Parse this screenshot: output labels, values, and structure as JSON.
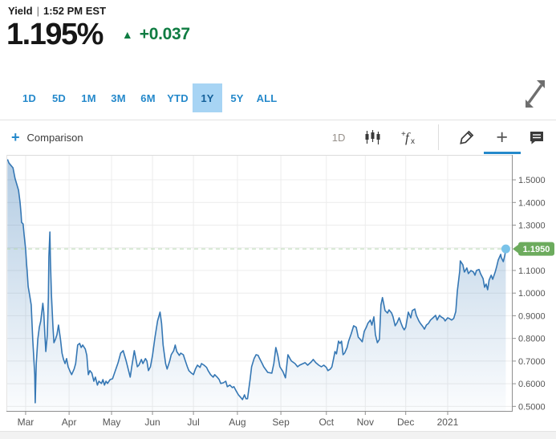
{
  "header": {
    "label": "Yield",
    "separator": "|",
    "timestamp": "1:52 PM EST",
    "price": "1.195%",
    "up_arrow": "▲",
    "change": "+0.037"
  },
  "range_tabs": {
    "items": [
      "1D",
      "5D",
      "1M",
      "3M",
      "6M",
      "YTD",
      "1Y",
      "5Y",
      "ALL"
    ],
    "selected": "1Y"
  },
  "toolbar": {
    "comparison_plus": "+",
    "comparison_label": "Comparison",
    "frequency_label": "1D",
    "fx_plus": "+",
    "fx_f": "f",
    "fx_x": "x",
    "add_tool_plus": "+"
  },
  "colors": {
    "accent_blue": "#2589cb",
    "selected_tab_bg": "#a7d4f4",
    "green_text": "#0f7c42",
    "line": "#3577b4",
    "dashed": "#b7d8b0",
    "dot": "#7ac3e9",
    "badge_bg": "#6cab5d",
    "badge_text": "#ffffff",
    "grid": "#ececec",
    "border_top": "#dcdcdc",
    "border_left": "#e3e3e3",
    "axis_strong": "#8f8f8f",
    "label": "#555555"
  },
  "chart_data": {
    "type": "area",
    "series_name": "Yield",
    "current_value": 1.195,
    "current_value_badge": "1.1950",
    "ylim": [
      0.48,
      1.61
    ],
    "y_ticks": [
      {
        "value": 1.5,
        "label": "1.5000"
      },
      {
        "value": 1.4,
        "label": "1.4000"
      },
      {
        "value": 1.3,
        "label": "1.3000"
      },
      {
        "value": 1.2,
        "label": ""
      },
      {
        "value": 1.1,
        "label": "1.1000"
      },
      {
        "value": 1.0,
        "label": "1.0000"
      },
      {
        "value": 0.9,
        "label": "0.9000"
      },
      {
        "value": 0.8,
        "label": "0.8000"
      },
      {
        "value": 0.7,
        "label": "0.7000"
      },
      {
        "value": 0.6,
        "label": "0.6000"
      },
      {
        "value": 0.5,
        "label": "0.5000"
      }
    ],
    "x_ticks": [
      {
        "label": "Mar",
        "f": 0.038
      },
      {
        "label": "Apr",
        "f": 0.124
      },
      {
        "label": "May",
        "f": 0.208
      },
      {
        "label": "Jun",
        "f": 0.289
      },
      {
        "label": "Jul",
        "f": 0.37
      },
      {
        "label": "Aug",
        "f": 0.457
      },
      {
        "label": "Sep",
        "f": 0.543
      },
      {
        "label": "Oct",
        "f": 0.633
      },
      {
        "label": "Nov",
        "f": 0.71
      },
      {
        "label": "Dec",
        "f": 0.79
      },
      {
        "label": "2021",
        "f": 0.873
      }
    ],
    "points": [
      [
        0.002,
        1.59
      ],
      [
        0.005,
        1.574
      ],
      [
        0.013,
        1.553
      ],
      [
        0.017,
        1.507
      ],
      [
        0.024,
        1.454
      ],
      [
        0.027,
        1.401
      ],
      [
        0.029,
        1.348
      ],
      [
        0.03,
        1.312
      ],
      [
        0.033,
        1.305
      ],
      [
        0.035,
        1.256
      ],
      [
        0.038,
        1.196
      ],
      [
        0.04,
        1.125
      ],
      [
        0.041,
        1.1
      ],
      [
        0.043,
        1.029
      ],
      [
        0.046,
        0.99
      ],
      [
        0.049,
        0.948
      ],
      [
        0.052,
        0.796
      ],
      [
        0.056,
        0.64
      ],
      [
        0.057,
        0.516
      ],
      [
        0.059,
        0.689
      ],
      [
        0.062,
        0.796
      ],
      [
        0.065,
        0.849
      ],
      [
        0.068,
        0.877
      ],
      [
        0.072,
        0.955
      ],
      [
        0.074,
        0.912
      ],
      [
        0.076,
        0.817
      ],
      [
        0.078,
        0.742
      ],
      [
        0.081,
        0.817
      ],
      [
        0.083,
        0.983
      ],
      [
        0.084,
        1.16
      ],
      [
        0.086,
        1.27
      ],
      [
        0.087,
        1.15
      ],
      [
        0.089,
        0.994
      ],
      [
        0.092,
        0.852
      ],
      [
        0.094,
        0.781
      ],
      [
        0.097,
        0.796
      ],
      [
        0.1,
        0.817
      ],
      [
        0.103,
        0.859
      ],
      [
        0.107,
        0.796
      ],
      [
        0.11,
        0.735
      ],
      [
        0.113,
        0.707
      ],
      [
        0.116,
        0.689
      ],
      [
        0.119,
        0.711
      ],
      [
        0.122,
        0.675
      ],
      [
        0.126,
        0.654
      ],
      [
        0.129,
        0.64
      ],
      [
        0.134,
        0.665
      ],
      [
        0.137,
        0.689
      ],
      [
        0.141,
        0.771
      ],
      [
        0.145,
        0.778
      ],
      [
        0.148,
        0.76
      ],
      [
        0.151,
        0.771
      ],
      [
        0.156,
        0.753
      ],
      [
        0.159,
        0.725
      ],
      [
        0.162,
        0.64
      ],
      [
        0.165,
        0.658
      ],
      [
        0.169,
        0.647
      ],
      [
        0.173,
        0.611
      ],
      [
        0.176,
        0.629
      ],
      [
        0.18,
        0.594
      ],
      [
        0.183,
        0.611
      ],
      [
        0.188,
        0.601
      ],
      [
        0.191,
        0.618
      ],
      [
        0.194,
        0.594
      ],
      [
        0.197,
        0.611
      ],
      [
        0.2,
        0.601
      ],
      [
        0.205,
        0.618
      ],
      [
        0.21,
        0.622
      ],
      [
        0.215,
        0.654
      ],
      [
        0.221,
        0.693
      ],
      [
        0.226,
        0.735
      ],
      [
        0.231,
        0.746
      ],
      [
        0.237,
        0.7
      ],
      [
        0.245,
        0.629
      ],
      [
        0.248,
        0.675
      ],
      [
        0.253,
        0.746
      ],
      [
        0.256,
        0.711
      ],
      [
        0.259,
        0.675
      ],
      [
        0.262,
        0.682
      ],
      [
        0.267,
        0.707
      ],
      [
        0.27,
        0.689
      ],
      [
        0.275,
        0.711
      ],
      [
        0.278,
        0.7
      ],
      [
        0.281,
        0.658
      ],
      [
        0.285,
        0.675
      ],
      [
        0.289,
        0.725
      ],
      [
        0.294,
        0.806
      ],
      [
        0.299,
        0.877
      ],
      [
        0.304,
        0.916
      ],
      [
        0.307,
        0.866
      ],
      [
        0.31,
        0.771
      ],
      [
        0.315,
        0.689
      ],
      [
        0.318,
        0.665
      ],
      [
        0.323,
        0.7
      ],
      [
        0.326,
        0.728
      ],
      [
        0.331,
        0.746
      ],
      [
        0.334,
        0.771
      ],
      [
        0.337,
        0.742
      ],
      [
        0.342,
        0.725
      ],
      [
        0.345,
        0.735
      ],
      [
        0.35,
        0.728
      ],
      [
        0.353,
        0.707
      ],
      [
        0.358,
        0.675
      ],
      [
        0.361,
        0.658
      ],
      [
        0.366,
        0.647
      ],
      [
        0.37,
        0.64
      ],
      [
        0.374,
        0.665
      ],
      [
        0.378,
        0.682
      ],
      [
        0.383,
        0.672
      ],
      [
        0.386,
        0.689
      ],
      [
        0.391,
        0.682
      ],
      [
        0.396,
        0.672
      ],
      [
        0.399,
        0.658
      ],
      [
        0.404,
        0.64
      ],
      [
        0.409,
        0.629
      ],
      [
        0.412,
        0.64
      ],
      [
        0.417,
        0.629
      ],
      [
        0.421,
        0.618
      ],
      [
        0.424,
        0.601
      ],
      [
        0.429,
        0.604
      ],
      [
        0.434,
        0.611
      ],
      [
        0.437,
        0.587
      ],
      [
        0.442,
        0.594
      ],
      [
        0.447,
        0.583
      ],
      [
        0.45,
        0.587
      ],
      [
        0.455,
        0.566
      ],
      [
        0.459,
        0.551
      ],
      [
        0.463,
        0.541
      ],
      [
        0.467,
        0.53
      ],
      [
        0.471,
        0.551
      ],
      [
        0.474,
        0.534
      ],
      [
        0.477,
        0.534
      ],
      [
        0.482,
        0.618
      ],
      [
        0.485,
        0.675
      ],
      [
        0.49,
        0.711
      ],
      [
        0.494,
        0.728
      ],
      [
        0.498,
        0.725
      ],
      [
        0.501,
        0.711
      ],
      [
        0.506,
        0.689
      ],
      [
        0.509,
        0.675
      ],
      [
        0.517,
        0.65
      ],
      [
        0.525,
        0.647
      ],
      [
        0.529,
        0.689
      ],
      [
        0.533,
        0.76
      ],
      [
        0.537,
        0.725
      ],
      [
        0.541,
        0.675
      ],
      [
        0.547,
        0.654
      ],
      [
        0.552,
        0.626
      ],
      [
        0.555,
        0.689
      ],
      [
        0.557,
        0.728
      ],
      [
        0.561,
        0.711
      ],
      [
        0.564,
        0.7
      ],
      [
        0.571,
        0.689
      ],
      [
        0.576,
        0.675
      ],
      [
        0.58,
        0.682
      ],
      [
        0.587,
        0.689
      ],
      [
        0.591,
        0.693
      ],
      [
        0.596,
        0.682
      ],
      [
        0.603,
        0.696
      ],
      [
        0.607,
        0.707
      ],
      [
        0.612,
        0.693
      ],
      [
        0.618,
        0.682
      ],
      [
        0.623,
        0.675
      ],
      [
        0.628,
        0.682
      ],
      [
        0.633,
        0.672
      ],
      [
        0.636,
        0.658
      ],
      [
        0.641,
        0.665
      ],
      [
        0.644,
        0.675
      ],
      [
        0.648,
        0.718
      ],
      [
        0.65,
        0.742
      ],
      [
        0.653,
        0.732
      ],
      [
        0.657,
        0.788
      ],
      [
        0.66,
        0.778
      ],
      [
        0.663,
        0.788
      ],
      [
        0.666,
        0.728
      ],
      [
        0.669,
        0.735
      ],
      [
        0.674,
        0.76
      ],
      [
        0.677,
        0.788
      ],
      [
        0.682,
        0.82
      ],
      [
        0.687,
        0.856
      ],
      [
        0.692,
        0.849
      ],
      [
        0.696,
        0.806
      ],
      [
        0.7,
        0.796
      ],
      [
        0.704,
        0.785
      ],
      [
        0.708,
        0.831
      ],
      [
        0.712,
        0.849
      ],
      [
        0.715,
        0.866
      ],
      [
        0.72,
        0.881
      ],
      [
        0.723,
        0.859
      ],
      [
        0.727,
        0.895
      ],
      [
        0.73,
        0.817
      ],
      [
        0.734,
        0.781
      ],
      [
        0.738,
        0.796
      ],
      [
        0.741,
        0.948
      ],
      [
        0.744,
        0.98
      ],
      [
        0.746,
        0.958
      ],
      [
        0.749,
        0.923
      ],
      [
        0.754,
        0.912
      ],
      [
        0.757,
        0.926
      ],
      [
        0.762,
        0.912
      ],
      [
        0.765,
        0.895
      ],
      [
        0.769,
        0.856
      ],
      [
        0.773,
        0.87
      ],
      [
        0.777,
        0.891
      ],
      [
        0.781,
        0.866
      ],
      [
        0.784,
        0.849
      ],
      [
        0.787,
        0.838
      ],
      [
        0.79,
        0.849
      ],
      [
        0.793,
        0.888
      ],
      [
        0.795,
        0.916
      ],
      [
        0.8,
        0.891
      ],
      [
        0.803,
        0.923
      ],
      [
        0.808,
        0.93
      ],
      [
        0.811,
        0.902
      ],
      [
        0.816,
        0.877
      ],
      [
        0.819,
        0.866
      ],
      [
        0.824,
        0.852
      ],
      [
        0.827,
        0.841
      ],
      [
        0.831,
        0.859
      ],
      [
        0.835,
        0.866
      ],
      [
        0.839,
        0.881
      ],
      [
        0.844,
        0.891
      ],
      [
        0.849,
        0.902
      ],
      [
        0.852,
        0.881
      ],
      [
        0.857,
        0.902
      ],
      [
        0.86,
        0.895
      ],
      [
        0.865,
        0.888
      ],
      [
        0.868,
        0.877
      ],
      [
        0.873,
        0.891
      ],
      [
        0.876,
        0.888
      ],
      [
        0.881,
        0.881
      ],
      [
        0.885,
        0.888
      ],
      [
        0.889,
        0.919
      ],
      [
        0.892,
        1.008
      ],
      [
        0.897,
        1.1
      ],
      [
        0.898,
        1.142
      ],
      [
        0.903,
        1.125
      ],
      [
        0.906,
        1.093
      ],
      [
        0.911,
        1.111
      ],
      [
        0.914,
        1.086
      ],
      [
        0.919,
        1.1
      ],
      [
        0.924,
        1.093
      ],
      [
        0.927,
        1.079
      ],
      [
        0.93,
        1.1
      ],
      [
        0.935,
        1.104
      ],
      [
        0.938,
        1.086
      ],
      [
        0.943,
        1.064
      ],
      [
        0.946,
        1.026
      ],
      [
        0.949,
        1.04
      ],
      [
        0.952,
        1.015
      ],
      [
        0.955,
        1.057
      ],
      [
        0.959,
        1.079
      ],
      [
        0.962,
        1.061
      ],
      [
        0.967,
        1.093
      ],
      [
        0.97,
        1.118
      ],
      [
        0.973,
        1.146
      ],
      [
        0.978,
        1.171
      ],
      [
        0.979,
        1.157
      ],
      [
        0.983,
        1.139
      ],
      [
        0.986,
        1.167
      ],
      [
        0.988,
        1.195
      ]
    ]
  }
}
